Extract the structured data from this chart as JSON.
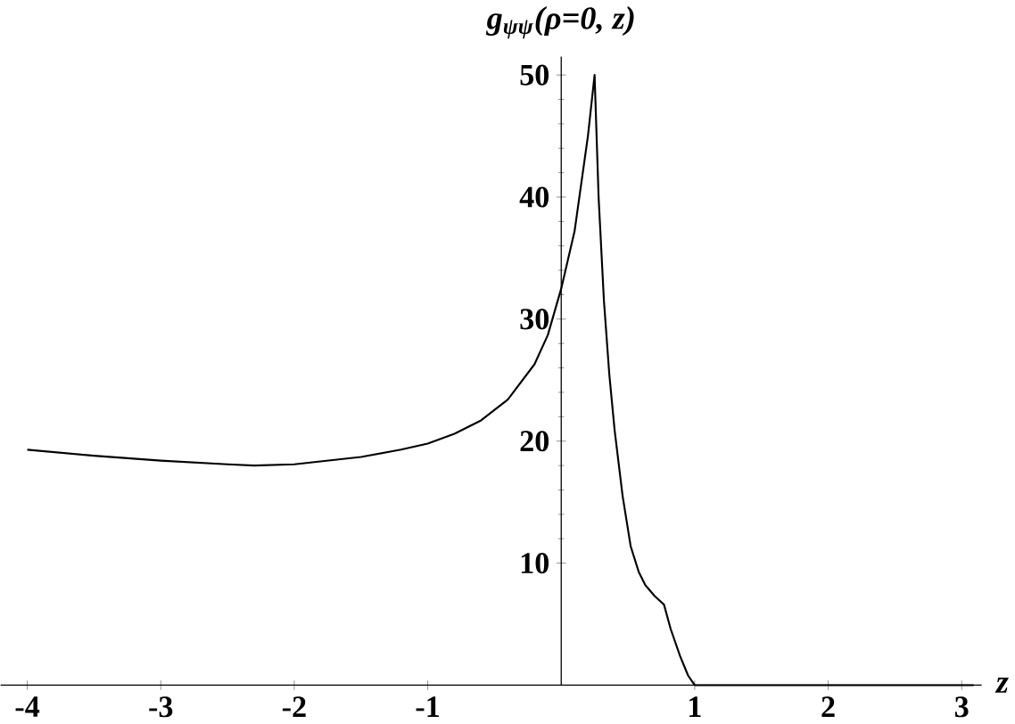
{
  "chart_data": {
    "type": "line",
    "xlabel": "z",
    "ylabel": "g$_{ψψ}$(ρ=0, z)",
    "x": [
      -4.0,
      -3.5,
      -3.0,
      -2.5,
      -2.3,
      -2.0,
      -1.5,
      -1.2,
      -1.0,
      -0.8,
      -0.6,
      -0.4,
      -0.2,
      -0.1,
      0.0,
      0.1,
      0.2,
      0.25,
      0.28,
      0.32,
      0.36,
      0.4,
      0.46,
      0.52,
      0.58,
      0.63,
      0.7,
      0.77,
      0.82,
      0.89,
      0.95,
      1.0,
      3.09
    ],
    "series": [
      {
        "color": "#000000",
        "values": [
          19.3,
          18.8,
          18.4,
          18.1,
          18.0,
          18.1,
          18.7,
          19.3,
          19.8,
          20.6,
          21.7,
          23.4,
          26.3,
          28.7,
          32.5,
          37.2,
          45,
          50,
          40,
          31.5,
          25.5,
          20.9,
          15.5,
          11.4,
          9.3,
          8.2,
          7.3,
          6.6,
          4.6,
          2.4,
          0.8,
          0,
          0
        ]
      }
    ],
    "xlim": [
      -4.2,
      3.15
    ],
    "ylim": [
      0,
      51.5
    ],
    "xticks": [
      -4,
      -3,
      -2,
      -1,
      1,
      2,
      3
    ],
    "yticks": [
      10,
      20,
      30,
      40,
      50
    ],
    "marker": "none",
    "line_style": "solid"
  }
}
